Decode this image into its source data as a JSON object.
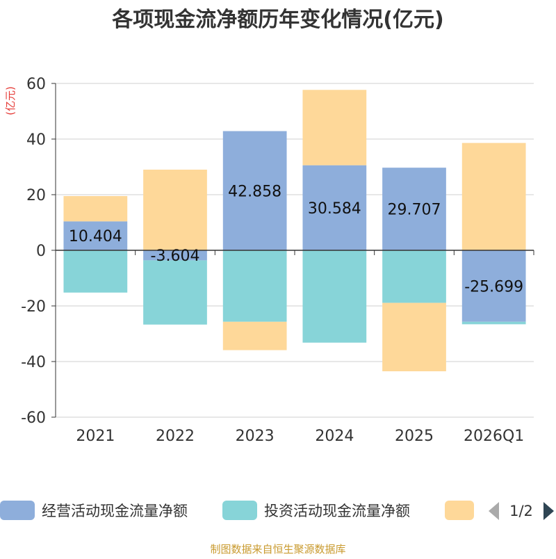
{
  "chart_data": {
    "type": "bar",
    "stacked": true,
    "title": "各项现金流净额历年变化情况(亿元)",
    "ylabel": "(亿元)",
    "categories": [
      "2021",
      "2022",
      "2023",
      "2024",
      "2025",
      "2026Q1"
    ],
    "ylim": [
      -60,
      60
    ],
    "yticks": [
      60,
      40,
      20,
      0,
      -20,
      -40,
      -60
    ],
    "series": [
      {
        "name": "经营活动现金流量净额",
        "color": "#8eaedb",
        "values": [
          10.404,
          -3.604,
          42.858,
          30.584,
          29.707,
          -25.699
        ],
        "labels": [
          "10.404",
          "-3.604",
          "42.858",
          "30.584",
          "29.707",
          "-25.699"
        ]
      },
      {
        "name": "投资活动现金流量净额",
        "color": "#87d4d8",
        "values": [
          -15.2,
          -23.1,
          -25.7,
          -33.2,
          -18.9,
          -0.9
        ]
      },
      {
        "name": "",
        "color": "#fed899",
        "values": [
          9.1,
          29.0,
          -10.2,
          27.1,
          -24.6,
          38.6
        ]
      }
    ]
  },
  "legend": {
    "page_indicator": "1/2"
  },
  "source": "制图数据来自恒生聚源数据库",
  "colors": {
    "grid": "#cfcfcf",
    "axis": "#333333",
    "title": "#333333",
    "ylabel": "#e53935",
    "source": "#c99a2e",
    "nav_disabled": "#aaaaaa",
    "nav_enabled": "#2f4554"
  }
}
